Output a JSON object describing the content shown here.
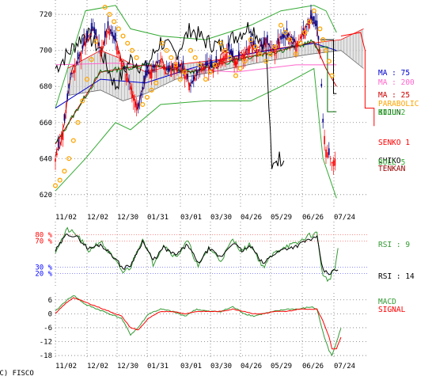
{
  "copyright": "(C) FISCO",
  "colors": {
    "ma25": "#cc0000",
    "ma75": "#0000cc",
    "ma200": "#ff66cc",
    "parabolic": "#ffa500",
    "kijun": "#006600",
    "tenkan": "#990000",
    "chikou": "#000000",
    "senko": "#ff0000",
    "bollinger": "#33aa33",
    "up_candle": "#ff0000",
    "down_candle": "#000088",
    "rsi9": "#339933",
    "rsi14": "#000000",
    "macd": "#339933",
    "signal": "#ff0000"
  },
  "chart_data": [
    {
      "type": "candlestick",
      "panel": "price",
      "x_dates": [
        "11/02",
        "12/02",
        "12/30",
        "01/31",
        "03/01",
        "03/30",
        "04/26",
        "05/29",
        "06/26",
        "07/24"
      ],
      "y_ticks": [
        620,
        640,
        660,
        680,
        700,
        720
      ],
      "ylim": [
        612,
        728
      ],
      "grid": true,
      "legend": [
        {
          "key": "ma75",
          "label": "MA : 75"
        },
        {
          "key": "ma200",
          "label": "MA : 200"
        },
        {
          "key": "ma25",
          "label": "MA : 25"
        },
        {
          "key": "parabolic",
          "label": "PARABOLIC"
        },
        {
          "key": "kijun",
          "label": "KIJUN"
        },
        {
          "key": "bollinger",
          "label": "BOLL 2"
        },
        {
          "key": "senko",
          "label": "SENKO 1"
        },
        {
          "key": "chikou",
          "label": "CHIKO"
        },
        {
          "key": "bollinger",
          "label": "BOLL 5"
        },
        {
          "key": "tenkan",
          "label": "TENKAN"
        }
      ],
      "close_anchors": [
        [
          0,
          640
        ],
        [
          5,
          655
        ],
        [
          10,
          685
        ],
        [
          15,
          695
        ],
        [
          20,
          705
        ],
        [
          25,
          712
        ],
        [
          30,
          700
        ],
        [
          35,
          712
        ],
        [
          40,
          705
        ],
        [
          45,
          692
        ],
        [
          50,
          680
        ],
        [
          55,
          668
        ],
        [
          60,
          685
        ],
        [
          65,
          690
        ],
        [
          70,
          695
        ],
        [
          75,
          688
        ],
        [
          80,
          692
        ],
        [
          85,
          690
        ],
        [
          90,
          680
        ],
        [
          95,
          688
        ],
        [
          100,
          692
        ],
        [
          105,
          690
        ],
        [
          110,
          695
        ],
        [
          115,
          700
        ],
        [
          120,
          694
        ],
        [
          125,
          698
        ],
        [
          130,
          704
        ],
        [
          135,
          700
        ],
        [
          140,
          705
        ],
        [
          145,
          700
        ],
        [
          150,
          706
        ],
        [
          155,
          708
        ],
        [
          160,
          704
        ],
        [
          165,
          710
        ],
        [
          170,
          718
        ],
        [
          174,
          712
        ],
        [
          176,
          700
        ],
        [
          178,
          660
        ],
        [
          180,
          645
        ],
        [
          182,
          642
        ],
        [
          184,
          638
        ],
        [
          186,
          640
        ]
      ],
      "candle_count": 187,
      "ma25": [
        [
          0,
          648
        ],
        [
          30,
          688
        ],
        [
          60,
          692
        ],
        [
          90,
          688
        ],
        [
          120,
          695
        ],
        [
          150,
          700
        ],
        [
          172,
          705
        ],
        [
          180,
          690
        ],
        [
          187,
          680
        ]
      ],
      "ma75": [
        [
          0,
          668
        ],
        [
          30,
          684
        ],
        [
          60,
          682
        ],
        [
          90,
          690
        ],
        [
          120,
          697
        ],
        [
          150,
          701
        ],
        [
          172,
          704
        ],
        [
          187,
          700
        ]
      ],
      "ma200": [
        [
          0,
          692
        ],
        [
          40,
          693
        ],
        [
          80,
          690
        ],
        [
          120,
          688
        ],
        [
          160,
          692
        ],
        [
          187,
          692
        ]
      ],
      "bollinger_upper": [
        [
          0,
          668
        ],
        [
          20,
          722
        ],
        [
          40,
          725
        ],
        [
          50,
          712
        ],
        [
          70,
          708
        ],
        [
          100,
          706
        ],
        [
          130,
          714
        ],
        [
          150,
          722
        ],
        [
          172,
          725
        ],
        [
          180,
          722
        ],
        [
          187,
          710
        ]
      ],
      "bollinger_lower": [
        [
          0,
          622
        ],
        [
          20,
          640
        ],
        [
          40,
          660
        ],
        [
          50,
          656
        ],
        [
          70,
          670
        ],
        [
          100,
          672
        ],
        [
          130,
          672
        ],
        [
          150,
          680
        ],
        [
          172,
          690
        ],
        [
          178,
          640
        ],
        [
          187,
          618
        ]
      ],
      "senko_cloud_upper": [
        [
          8,
          690
        ],
        [
          30,
          700
        ],
        [
          45,
          695
        ],
        [
          60,
          688
        ],
        [
          80,
          692
        ],
        [
          110,
          695
        ],
        [
          140,
          700
        ],
        [
          170,
          704
        ],
        [
          190,
          706
        ],
        [
          205,
          712
        ]
      ],
      "senko_cloud_lower": [
        [
          8,
          675
        ],
        [
          30,
          678
        ],
        [
          45,
          672
        ],
        [
          60,
          676
        ],
        [
          80,
          684
        ],
        [
          110,
          689
        ],
        [
          140,
          694
        ],
        [
          170,
          698
        ],
        [
          190,
          700
        ],
        [
          205,
          690
        ]
      ],
      "parabolic_dots": [
        [
          0,
          625
        ],
        [
          3,
          628
        ],
        [
          6,
          633
        ],
        [
          9,
          640
        ],
        [
          12,
          650
        ],
        [
          15,
          660
        ],
        [
          18,
          672
        ],
        [
          21,
          684
        ],
        [
          24,
          695
        ],
        [
          27,
          705
        ],
        [
          33,
          724
        ],
        [
          36,
          720
        ],
        [
          39,
          716
        ],
        [
          42,
          712
        ],
        [
          45,
          708
        ],
        [
          48,
          704
        ],
        [
          51,
          700
        ],
        [
          54,
          696
        ],
        [
          58,
          670
        ],
        [
          61,
          674
        ],
        [
          64,
          678
        ],
        [
          67,
          682
        ],
        [
          71,
          704
        ],
        [
          74,
          700
        ],
        [
          77,
          696
        ],
        [
          80,
          692
        ],
        [
          83,
          684
        ],
        [
          86,
          688
        ],
        [
          90,
          700
        ],
        [
          93,
          696
        ],
        [
          96,
          692
        ],
        [
          100,
          684
        ],
        [
          103,
          688
        ],
        [
          106,
          692
        ],
        [
          110,
          704
        ],
        [
          113,
          700
        ],
        [
          116,
          696
        ],
        [
          120,
          686
        ],
        [
          123,
          690
        ],
        [
          126,
          694
        ],
        [
          130,
          706
        ],
        [
          133,
          702
        ],
        [
          136,
          698
        ],
        [
          140,
          694
        ],
        [
          143,
          698
        ],
        [
          146,
          702
        ],
        [
          150,
          714
        ],
        [
          153,
          710
        ],
        [
          156,
          706
        ],
        [
          160,
          698
        ],
        [
          163,
          704
        ],
        [
          166,
          710
        ],
        [
          169,
          716
        ],
        [
          172,
          722
        ],
        [
          176,
          712
        ],
        [
          178,
          706
        ],
        [
          180,
          700
        ],
        [
          182,
          694
        ],
        [
          184,
          686
        ]
      ],
      "chikou_anchors": [
        [
          0,
          690
        ],
        [
          10,
          700
        ],
        [
          20,
          710
        ],
        [
          30,
          700
        ],
        [
          40,
          680
        ],
        [
          50,
          695
        ],
        [
          60,
          690
        ],
        [
          70,
          705
        ],
        [
          80,
          698
        ],
        [
          90,
          712
        ],
        [
          100,
          705
        ],
        [
          110,
          702
        ],
        [
          120,
          708
        ],
        [
          130,
          714
        ],
        [
          140,
          702
        ],
        [
          142,
          670
        ],
        [
          144,
          632
        ],
        [
          146,
          640
        ],
        [
          150,
          640
        ],
        [
          152,
          642
        ]
      ],
      "tail_lines": [
        {
          "key": "kijun",
          "points": [
            [
              176,
              702
            ],
            [
              181,
              702
            ],
            [
              181,
              666
            ],
            [
              187,
              666
            ]
          ]
        },
        {
          "key": "chikou",
          "points": [
            [
              176,
              706
            ],
            [
              185,
              706
            ],
            [
              185,
              676
            ],
            [
              187,
              676
            ]
          ]
        },
        {
          "key": "senko",
          "points": [
            [
              190,
              708
            ],
            [
              203,
              710
            ],
            [
              206,
              700
            ],
            [
              206,
              668
            ],
            [
              212,
              668
            ],
            [
              212,
              658
            ]
          ]
        }
      ]
    },
    {
      "type": "line",
      "panel": "rsi",
      "y_ticks": [
        20,
        30,
        70,
        80
      ],
      "y_tick_labels": [
        "20 %",
        "30 %",
        "70 %",
        "80 %"
      ],
      "ylim": [
        0,
        100
      ],
      "reference_lines": [
        20,
        30,
        70,
        80
      ],
      "legend": [
        {
          "key": "rsi9",
          "label": "RSI : 9"
        },
        {
          "key": "rsi14",
          "label": "RSI : 14"
        }
      ],
      "rsi9_anchors": [
        [
          0,
          55
        ],
        [
          8,
          88
        ],
        [
          15,
          78
        ],
        [
          22,
          55
        ],
        [
          30,
          70
        ],
        [
          38,
          45
        ],
        [
          45,
          22
        ],
        [
          50,
          30
        ],
        [
          58,
          75
        ],
        [
          65,
          35
        ],
        [
          72,
          65
        ],
        [
          80,
          45
        ],
        [
          88,
          70
        ],
        [
          95,
          30
        ],
        [
          102,
          60
        ],
        [
          110,
          40
        ],
        [
          118,
          72
        ],
        [
          124,
          55
        ],
        [
          130,
          65
        ],
        [
          138,
          30
        ],
        [
          145,
          50
        ],
        [
          152,
          62
        ],
        [
          160,
          65
        ],
        [
          168,
          78
        ],
        [
          174,
          82
        ],
        [
          178,
          15
        ],
        [
          182,
          10
        ],
        [
          186,
          30
        ],
        [
          188,
          58
        ]
      ],
      "rsi14_anchors": [
        [
          0,
          55
        ],
        [
          8,
          82
        ],
        [
          15,
          75
        ],
        [
          22,
          58
        ],
        [
          30,
          65
        ],
        [
          38,
          48
        ],
        [
          45,
          28
        ],
        [
          50,
          33
        ],
        [
          58,
          70
        ],
        [
          65,
          40
        ],
        [
          72,
          60
        ],
        [
          80,
          48
        ],
        [
          88,
          65
        ],
        [
          95,
          35
        ],
        [
          102,
          58
        ],
        [
          110,
          45
        ],
        [
          118,
          68
        ],
        [
          124,
          55
        ],
        [
          130,
          62
        ],
        [
          138,
          35
        ],
        [
          145,
          50
        ],
        [
          152,
          58
        ],
        [
          160,
          62
        ],
        [
          168,
          72
        ],
        [
          174,
          75
        ],
        [
          178,
          25
        ],
        [
          182,
          20
        ],
        [
          186,
          25
        ],
        [
          188,
          25
        ]
      ]
    },
    {
      "type": "line",
      "panel": "macd",
      "x_dates": [
        "11/02",
        "12/02",
        "12/30",
        "01/31",
        "03/01",
        "03/30",
        "04/26",
        "05/29",
        "06/26",
        "07/24"
      ],
      "y_ticks": [
        -18,
        -12,
        -6,
        0,
        6
      ],
      "ylim": [
        -19,
        9
      ],
      "legend": [
        {
          "key": "macd",
          "label": "MACD"
        },
        {
          "key": "signal",
          "label": "SIGNAL"
        }
      ],
      "macd_anchors": [
        [
          0,
          1
        ],
        [
          6,
          5
        ],
        [
          12,
          8
        ],
        [
          20,
          4
        ],
        [
          28,
          2
        ],
        [
          36,
          0
        ],
        [
          44,
          -2
        ],
        [
          50,
          -9
        ],
        [
          55,
          -6
        ],
        [
          62,
          0
        ],
        [
          70,
          2
        ],
        [
          78,
          1
        ],
        [
          86,
          -1
        ],
        [
          94,
          2
        ],
        [
          102,
          1
        ],
        [
          110,
          1
        ],
        [
          118,
          3
        ],
        [
          126,
          0
        ],
        [
          132,
          -1
        ],
        [
          138,
          0
        ],
        [
          146,
          1
        ],
        [
          154,
          2
        ],
        [
          162,
          2
        ],
        [
          170,
          3
        ],
        [
          174,
          2
        ],
        [
          178,
          -8
        ],
        [
          182,
          -16
        ],
        [
          184,
          -18
        ],
        [
          187,
          -12
        ],
        [
          190,
          -6
        ]
      ],
      "signal_anchors": [
        [
          0,
          0
        ],
        [
          6,
          4
        ],
        [
          12,
          7
        ],
        [
          20,
          5
        ],
        [
          28,
          3
        ],
        [
          36,
          1
        ],
        [
          44,
          -1
        ],
        [
          50,
          -6
        ],
        [
          55,
          -7
        ],
        [
          62,
          -2
        ],
        [
          70,
          1
        ],
        [
          78,
          1
        ],
        [
          86,
          0
        ],
        [
          94,
          1
        ],
        [
          102,
          1
        ],
        [
          110,
          1
        ],
        [
          118,
          2
        ],
        [
          126,
          1
        ],
        [
          132,
          0
        ],
        [
          138,
          0
        ],
        [
          146,
          1
        ],
        [
          154,
          1
        ],
        [
          162,
          2
        ],
        [
          170,
          2
        ],
        [
          174,
          2
        ],
        [
          178,
          -3
        ],
        [
          182,
          -10
        ],
        [
          184,
          -15
        ],
        [
          187,
          -15
        ],
        [
          190,
          -10
        ]
      ]
    }
  ]
}
